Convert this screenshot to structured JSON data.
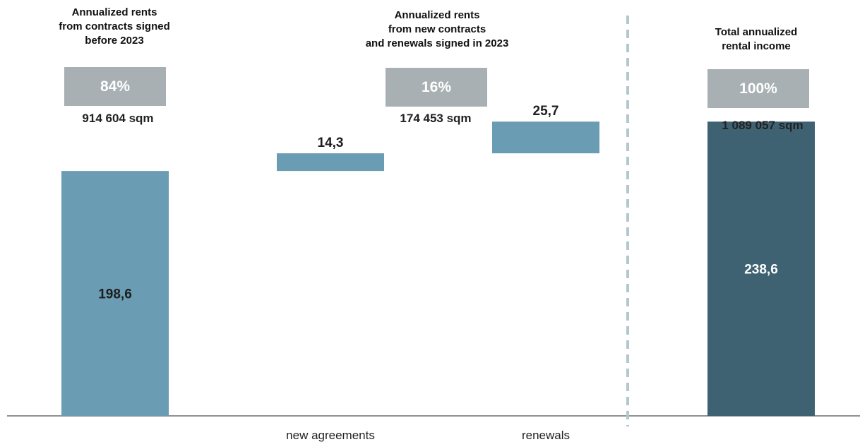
{
  "header_groups": [
    {
      "caption": "Annualized rents\nfrom contracts signed\nbefore 2023",
      "share": "84%",
      "area": "914 604 sqm"
    },
    {
      "caption": "Annualized rents\nfrom new contracts\nand renewals signed in 2023",
      "share": "16%",
      "area": "174 453 sqm"
    },
    {
      "caption": "Total annualized\nrental income",
      "share": "100%",
      "area": "1 089 057 sqm"
    }
  ],
  "chart_data": {
    "type": "bar",
    "subtype": "waterfall",
    "categories": [
      "",
      "new agreements",
      "renewals",
      ""
    ],
    "bars": [
      {
        "category": "",
        "start": 0,
        "end": 198.6,
        "value_label": "198,6",
        "label_position": "inside",
        "color": "#6a9db3"
      },
      {
        "category": "new agreements",
        "start": 198.6,
        "end": 212.9,
        "value_label": "14,3",
        "label_position": "above",
        "color": "#6a9db3"
      },
      {
        "category": "renewals",
        "start": 212.9,
        "end": 238.6,
        "value_label": "25,7",
        "label_position": "above",
        "color": "#6a9db3"
      },
      {
        "category": "",
        "start": 0,
        "end": 238.6,
        "value_label": "238,6",
        "label_position": "inside",
        "color": "#3f6273"
      }
    ],
    "ylim": [
      0,
      300
    ],
    "grid": false,
    "divider_color": "#b3c7cc"
  }
}
